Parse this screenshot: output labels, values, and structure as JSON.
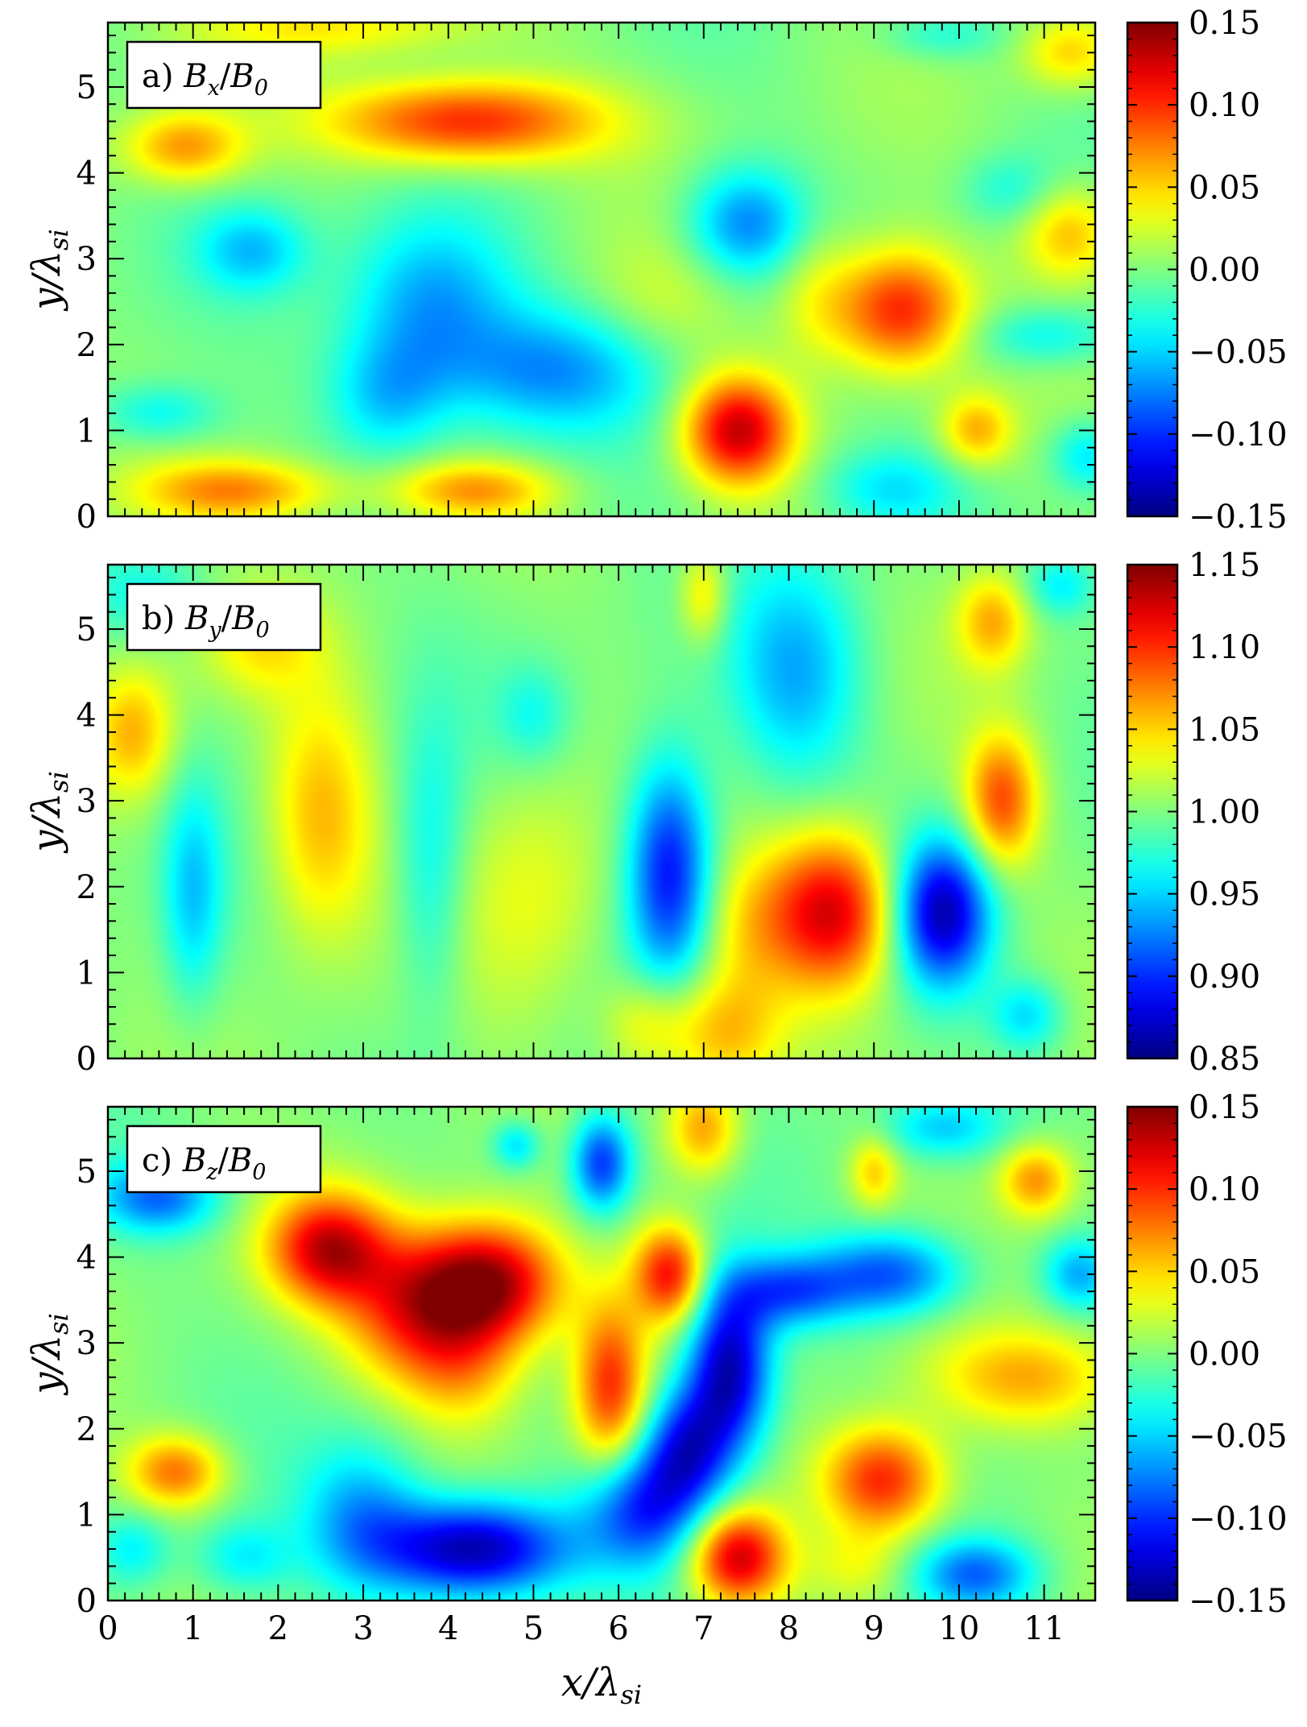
{
  "chart_data": [
    {
      "type": "heatmap",
      "panel_label": {
        "prefix": "a) ",
        "var": "B",
        "var_sub": "x",
        "slash": "/",
        "ref": "B",
        "ref_sub": "0"
      },
      "xlabel": {
        "main": "x/λ",
        "sub": "si"
      },
      "ylabel": {
        "main": "y/λ",
        "sub": "si"
      },
      "xlim": [
        0,
        11.6
      ],
      "ylim": [
        0,
        5.75
      ],
      "x_ticks": [
        "0",
        "1",
        "2",
        "3",
        "4",
        "5",
        "6",
        "7",
        "8",
        "9",
        "10",
        "11"
      ],
      "y_ticks": [
        "0",
        "1",
        "2",
        "3",
        "4",
        "5"
      ],
      "colormap": "jet",
      "clim": [
        -0.15,
        0.15
      ],
      "colorbar_ticks": [
        "−0.15",
        "−0.10",
        "−0.05",
        "0.00",
        "0.05",
        "0.10",
        "0.15"
      ],
      "features": [
        {
          "x": 4.2,
          "y": 4.6,
          "sx": 1.1,
          "sy": 0.35,
          "v": 0.11
        },
        {
          "x": 0.9,
          "y": 4.3,
          "sx": 0.5,
          "sy": 0.3,
          "v": 0.07
        },
        {
          "x": 11.3,
          "y": 5.4,
          "sx": 0.4,
          "sy": 0.3,
          "v": 0.05
        },
        {
          "x": 2.8,
          "y": 5.7,
          "sx": 1.2,
          "sy": 0.25,
          "v": 0.04
        },
        {
          "x": 1.5,
          "y": 0.3,
          "sx": 0.8,
          "sy": 0.25,
          "v": 0.07
        },
        {
          "x": 4.3,
          "y": 0.3,
          "sx": 0.7,
          "sy": 0.25,
          "v": 0.07
        },
        {
          "x": 7.4,
          "y": 1.0,
          "sx": 0.45,
          "sy": 0.45,
          "v": 0.13
        },
        {
          "x": 9.3,
          "y": 2.4,
          "sx": 0.55,
          "sy": 0.5,
          "v": 0.11
        },
        {
          "x": 11.3,
          "y": 3.3,
          "sx": 0.4,
          "sy": 0.4,
          "v": 0.06
        },
        {
          "x": 10.2,
          "y": 1.0,
          "sx": 0.3,
          "sy": 0.3,
          "v": 0.06
        },
        {
          "x": 3.8,
          "y": 2.5,
          "sx": 0.7,
          "sy": 0.7,
          "v": -0.07
        },
        {
          "x": 5.2,
          "y": 1.7,
          "sx": 0.9,
          "sy": 0.5,
          "v": -0.065
        },
        {
          "x": 3.3,
          "y": 1.4,
          "sx": 0.5,
          "sy": 0.5,
          "v": -0.05
        },
        {
          "x": 7.5,
          "y": 3.4,
          "sx": 0.5,
          "sy": 0.45,
          "v": -0.075
        },
        {
          "x": 1.7,
          "y": 3.1,
          "sx": 0.45,
          "sy": 0.35,
          "v": -0.05
        },
        {
          "x": 0.6,
          "y": 1.2,
          "sx": 0.5,
          "sy": 0.25,
          "v": -0.04
        },
        {
          "x": 9.2,
          "y": 0.3,
          "sx": 0.6,
          "sy": 0.35,
          "v": -0.05
        },
        {
          "x": 11.0,
          "y": 2.1,
          "sx": 0.6,
          "sy": 0.25,
          "v": -0.04
        },
        {
          "x": 11.5,
          "y": 0.7,
          "sx": 0.3,
          "sy": 0.3,
          "v": -0.05
        },
        {
          "x": 10.6,
          "y": 3.8,
          "sx": 0.4,
          "sy": 0.3,
          "v": -0.03
        },
        {
          "x": 9.8,
          "y": 5.6,
          "sx": 0.5,
          "sy": 0.2,
          "v": -0.03
        },
        {
          "x": 8.3,
          "y": 2.6,
          "sx": 0.35,
          "sy": 0.6,
          "v": 0.03
        },
        {
          "x": 6.5,
          "y": 2.5,
          "sx": 0.6,
          "sy": 0.5,
          "v": 0.02
        }
      ]
    },
    {
      "type": "heatmap",
      "panel_label": {
        "prefix": "b) ",
        "var": "B",
        "var_sub": "y",
        "slash": "/",
        "ref": "B",
        "ref_sub": "0"
      },
      "xlabel": {
        "main": "x/λ",
        "sub": "si"
      },
      "ylabel": {
        "main": "y/λ",
        "sub": "si"
      },
      "xlim": [
        0,
        11.6
      ],
      "ylim": [
        0,
        5.75
      ],
      "x_ticks": [
        "0",
        "1",
        "2",
        "3",
        "4",
        "5",
        "6",
        "7",
        "8",
        "9",
        "10",
        "11"
      ],
      "y_ticks": [
        "0",
        "1",
        "2",
        "3",
        "4",
        "5"
      ],
      "colormap": "jet",
      "clim": [
        0.85,
        1.15
      ],
      "baseline": 1.0,
      "colorbar_ticks": [
        "0.85",
        "0.90",
        "0.95",
        "1.00",
        "1.05",
        "1.10",
        "1.15"
      ],
      "features": [
        {
          "x": 8.5,
          "y": 1.7,
          "sx": 0.55,
          "sy": 0.65,
          "v": 0.13
        },
        {
          "x": 9.8,
          "y": 1.7,
          "sx": 0.4,
          "sy": 0.6,
          "v": -0.135
        },
        {
          "x": 6.6,
          "y": 2.2,
          "sx": 0.35,
          "sy": 0.9,
          "v": -0.115
        },
        {
          "x": 8.1,
          "y": 4.5,
          "sx": 0.55,
          "sy": 0.9,
          "v": -0.06
        },
        {
          "x": 10.5,
          "y": 3.0,
          "sx": 0.3,
          "sy": 0.55,
          "v": 0.09
        },
        {
          "x": 10.4,
          "y": 5.1,
          "sx": 0.3,
          "sy": 0.4,
          "v": 0.06
        },
        {
          "x": 2.5,
          "y": 2.8,
          "sx": 0.45,
          "sy": 1.0,
          "v": 0.06
        },
        {
          "x": 0.3,
          "y": 3.8,
          "sx": 0.35,
          "sy": 0.55,
          "v": 0.06
        },
        {
          "x": 1.0,
          "y": 1.9,
          "sx": 0.25,
          "sy": 0.9,
          "v": -0.05
        },
        {
          "x": 3.8,
          "y": 2.2,
          "sx": 0.3,
          "sy": 1.2,
          "v": -0.04
        },
        {
          "x": 7.2,
          "y": 0.3,
          "sx": 0.5,
          "sy": 0.5,
          "v": 0.06
        },
        {
          "x": 6.3,
          "y": 0.4,
          "sx": 0.35,
          "sy": 0.4,
          "v": 0.04
        },
        {
          "x": 7.0,
          "y": 5.4,
          "sx": 0.2,
          "sy": 0.4,
          "v": 0.05
        },
        {
          "x": 10.8,
          "y": 0.5,
          "sx": 0.3,
          "sy": 0.3,
          "v": -0.05
        },
        {
          "x": 11.2,
          "y": 5.5,
          "sx": 0.3,
          "sy": 0.25,
          "v": -0.04
        },
        {
          "x": 0.5,
          "y": 5.4,
          "sx": 0.5,
          "sy": 0.35,
          "v": -0.03
        },
        {
          "x": 5.0,
          "y": 4.0,
          "sx": 0.3,
          "sy": 0.4,
          "v": -0.03
        },
        {
          "x": 1.8,
          "y": 4.8,
          "sx": 0.5,
          "sy": 0.4,
          "v": 0.035
        },
        {
          "x": 5.0,
          "y": 2.0,
          "sx": 0.6,
          "sy": 1.0,
          "v": 0.03
        },
        {
          "x": 7.5,
          "y": 1.5,
          "sx": 0.4,
          "sy": 0.6,
          "v": 0.03
        }
      ]
    },
    {
      "type": "heatmap",
      "panel_label": {
        "prefix": "c) ",
        "var": "B",
        "var_sub": "z",
        "slash": "/",
        "ref": "B",
        "ref_sub": "0"
      },
      "xlabel": {
        "main": "x/λ",
        "sub": "si"
      },
      "ylabel": {
        "main": "y/λ",
        "sub": "si"
      },
      "xlim": [
        0,
        11.6
      ],
      "ylim": [
        0,
        5.75
      ],
      "x_ticks": [
        "0",
        "1",
        "2",
        "3",
        "4",
        "5",
        "6",
        "7",
        "8",
        "9",
        "10",
        "11"
      ],
      "y_ticks": [
        "0",
        "1",
        "2",
        "3",
        "4",
        "5"
      ],
      "colormap": "jet",
      "clim": [
        -0.15,
        0.15
      ],
      "colorbar_ticks": [
        "−0.15",
        "−0.10",
        "−0.05",
        "0.00",
        "0.05",
        "0.10",
        "0.15"
      ],
      "features": [
        {
          "x": 2.6,
          "y": 4.1,
          "sx": 0.5,
          "sy": 0.45,
          "v": 0.12
        },
        {
          "x": 4.5,
          "y": 3.7,
          "sx": 0.6,
          "sy": 0.5,
          "v": 0.14
        },
        {
          "x": 3.6,
          "y": 3.4,
          "sx": 0.6,
          "sy": 0.6,
          "v": 0.09
        },
        {
          "x": 4.2,
          "y": 2.7,
          "sx": 0.5,
          "sy": 0.5,
          "v": 0.05
        },
        {
          "x": 6.6,
          "y": 3.8,
          "sx": 0.3,
          "sy": 0.4,
          "v": 0.11
        },
        {
          "x": 5.9,
          "y": 2.5,
          "sx": 0.3,
          "sy": 0.7,
          "v": 0.1
        },
        {
          "x": 7.0,
          "y": 5.5,
          "sx": 0.3,
          "sy": 0.4,
          "v": 0.07
        },
        {
          "x": 0.8,
          "y": 1.5,
          "sx": 0.4,
          "sy": 0.3,
          "v": 0.08
        },
        {
          "x": 7.4,
          "y": 0.5,
          "sx": 0.4,
          "sy": 0.4,
          "v": 0.13
        },
        {
          "x": 9.1,
          "y": 1.4,
          "sx": 0.5,
          "sy": 0.45,
          "v": 0.11
        },
        {
          "x": 10.9,
          "y": 4.9,
          "sx": 0.3,
          "sy": 0.3,
          "v": 0.07
        },
        {
          "x": 9.0,
          "y": 5.0,
          "sx": 0.2,
          "sy": 0.3,
          "v": 0.05
        },
        {
          "x": 10.8,
          "y": 2.6,
          "sx": 0.8,
          "sy": 0.4,
          "v": 0.06
        },
        {
          "x": 4.3,
          "y": 0.6,
          "sx": 0.8,
          "sy": 0.4,
          "v": -0.145
        },
        {
          "x": 3.0,
          "y": 1.0,
          "sx": 0.5,
          "sy": 0.6,
          "v": -0.06
        },
        {
          "x": 6.3,
          "y": 1.1,
          "sx": 0.5,
          "sy": 0.5,
          "v": -0.1
        },
        {
          "x": 7.3,
          "y": 2.7,
          "sx": 0.35,
          "sy": 0.7,
          "v": -0.14
        },
        {
          "x": 6.8,
          "y": 1.8,
          "sx": 0.35,
          "sy": 0.5,
          "v": -0.1
        },
        {
          "x": 8.0,
          "y": 3.6,
          "sx": 0.5,
          "sy": 0.3,
          "v": -0.08
        },
        {
          "x": 9.2,
          "y": 3.8,
          "sx": 0.6,
          "sy": 0.35,
          "v": -0.09
        },
        {
          "x": 11.4,
          "y": 3.8,
          "sx": 0.3,
          "sy": 0.3,
          "v": -0.06
        },
        {
          "x": 5.8,
          "y": 5.1,
          "sx": 0.25,
          "sy": 0.4,
          "v": -0.1
        },
        {
          "x": 0.6,
          "y": 4.7,
          "sx": 0.5,
          "sy": 0.3,
          "v": -0.08
        },
        {
          "x": 10.2,
          "y": 0.3,
          "sx": 0.5,
          "sy": 0.3,
          "v": -0.08
        },
        {
          "x": 0.3,
          "y": 0.6,
          "sx": 0.3,
          "sy": 0.3,
          "v": -0.04
        },
        {
          "x": 4.8,
          "y": 5.3,
          "sx": 0.2,
          "sy": 0.2,
          "v": -0.05
        },
        {
          "x": 9.8,
          "y": 5.5,
          "sx": 0.5,
          "sy": 0.25,
          "v": -0.05
        },
        {
          "x": 1.6,
          "y": 0.5,
          "sx": 0.4,
          "sy": 0.3,
          "v": -0.04
        },
        {
          "x": 8.8,
          "y": 0.4,
          "sx": 0.4,
          "sy": 0.3,
          "v": 0.03
        }
      ]
    }
  ]
}
